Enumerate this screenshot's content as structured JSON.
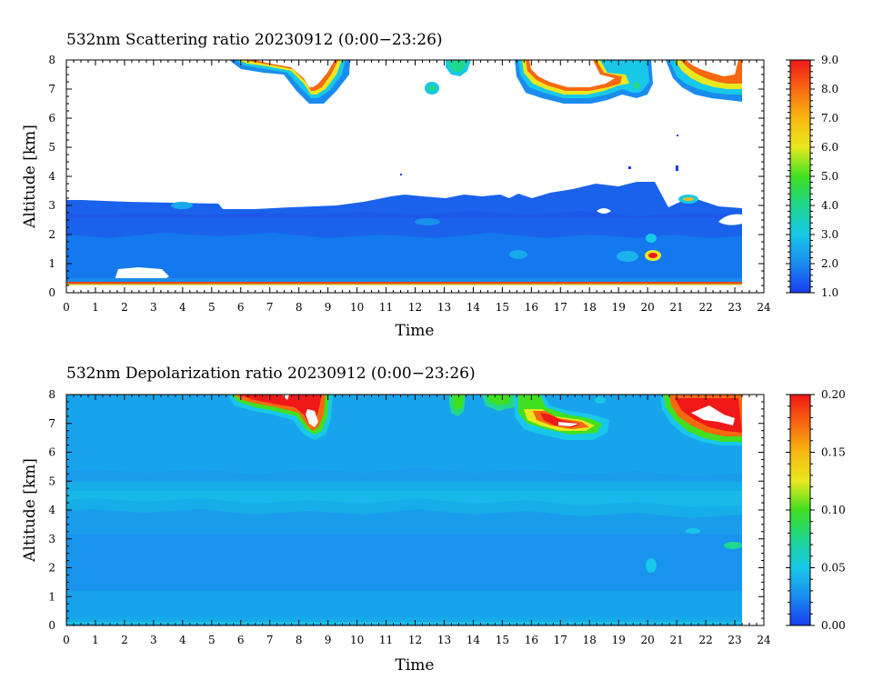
{
  "chart_data": [
    {
      "type": "heatmap",
      "title": "532nm Scattering ratio  20230912 (0:00−23:26)",
      "xlabel": "Time",
      "ylabel": "Altitude [km]",
      "xlim": [
        0,
        24
      ],
      "ylim": [
        0,
        8
      ],
      "x_ticks": [
        "0",
        "1",
        "2",
        "3",
        "4",
        "5",
        "6",
        "7",
        "8",
        "9",
        "10",
        "11",
        "12",
        "13",
        "14",
        "15",
        "16",
        "17",
        "18",
        "19",
        "20",
        "21",
        "22",
        "23",
        "24"
      ],
      "y_ticks": [
        "0",
        "1",
        "2",
        "3",
        "4",
        "5",
        "6",
        "7",
        "8"
      ],
      "data_end_time": 23.43,
      "colorbar": {
        "min": 1.0,
        "max": 9.0,
        "tick_labels": [
          "1.0",
          "2.0",
          "3.0",
          "4.0",
          "5.0",
          "6.0",
          "7.0",
          "8.0",
          "9.0"
        ],
        "colors": [
          "#1a3cf0",
          "#1a8cf0",
          "#18c8e8",
          "#20d890",
          "#40e020",
          "#e8e820",
          "#f8b810",
          "#f86810",
          "#f01818"
        ]
      },
      "features": [
        {
          "label": "boundary layer",
          "time_range": [
            0,
            23.43
          ],
          "altitude_range": [
            0.3,
            3.0
          ],
          "value_range": [
            1.3,
            2.4
          ]
        },
        {
          "label": "cloud",
          "time_range": [
            5.5,
            9.5
          ],
          "altitude_range": [
            6.6,
            8.0
          ],
          "value_range": [
            2.0,
            9.0
          ]
        },
        {
          "label": "cloud",
          "time_range": [
            13.0,
            14.5
          ],
          "altitude_range": [
            7.2,
            8.0
          ],
          "value_range": [
            2.0,
            6.0
          ]
        },
        {
          "label": "cloud",
          "time_range": [
            15.5,
            20.0
          ],
          "altitude_range": [
            6.7,
            8.0
          ],
          "value_range": [
            2.0,
            9.0
          ]
        },
        {
          "label": "cloud",
          "time_range": [
            20.8,
            23.43
          ],
          "altitude_range": [
            6.6,
            8.0
          ],
          "value_range": [
            2.0,
            9.0
          ]
        },
        {
          "label": "aerosol spot",
          "time_range": [
            20.0,
            20.4
          ],
          "altitude_range": [
            1.1,
            1.4
          ],
          "value_range": [
            6.0,
            8.0
          ]
        }
      ]
    },
    {
      "type": "heatmap",
      "title": "532nm Depolarization ratio  20230912 (0:00−23:26)",
      "xlabel": "Time",
      "ylabel": "Altitude [km]",
      "xlim": [
        0,
        24
      ],
      "ylim": [
        0,
        8
      ],
      "x_ticks": [
        "0",
        "1",
        "2",
        "3",
        "4",
        "5",
        "6",
        "7",
        "8",
        "9",
        "10",
        "11",
        "12",
        "13",
        "14",
        "15",
        "16",
        "17",
        "18",
        "19",
        "20",
        "21",
        "22",
        "23",
        "24"
      ],
      "y_ticks": [
        "0",
        "1",
        "2",
        "3",
        "4",
        "5",
        "6",
        "7",
        "8"
      ],
      "data_end_time": 23.43,
      "colorbar": {
        "min": 0.0,
        "max": 0.2,
        "tick_labels": [
          "0.00",
          "0.05",
          "0.10",
          "0.15",
          "0.20"
        ],
        "colors": [
          "#1a3cf0",
          "#1a8cf0",
          "#18c8e8",
          "#20d890",
          "#40e020",
          "#e8e820",
          "#f8b810",
          "#f86810",
          "#f01818"
        ]
      },
      "features": [
        {
          "label": "background",
          "time_range": [
            0,
            23.43
          ],
          "altitude_range": [
            0,
            8
          ],
          "value_range": [
            0.03,
            0.05
          ]
        },
        {
          "label": "cloud",
          "time_range": [
            5.5,
            9.0
          ],
          "altitude_range": [
            6.6,
            8.0
          ],
          "value_range": [
            0.1,
            0.2
          ]
        },
        {
          "label": "cloud",
          "time_range": [
            13.2,
            15.5
          ],
          "altitude_range": [
            7.3,
            8.0
          ],
          "value_range": [
            0.07,
            0.12
          ]
        },
        {
          "label": "cloud",
          "time_range": [
            15.8,
            19.0
          ],
          "altitude_range": [
            6.6,
            7.8
          ],
          "value_range": [
            0.1,
            0.2
          ]
        },
        {
          "label": "cloud",
          "time_range": [
            20.8,
            23.43
          ],
          "altitude_range": [
            6.5,
            8.0
          ],
          "value_range": [
            0.1,
            0.2
          ]
        }
      ]
    }
  ]
}
